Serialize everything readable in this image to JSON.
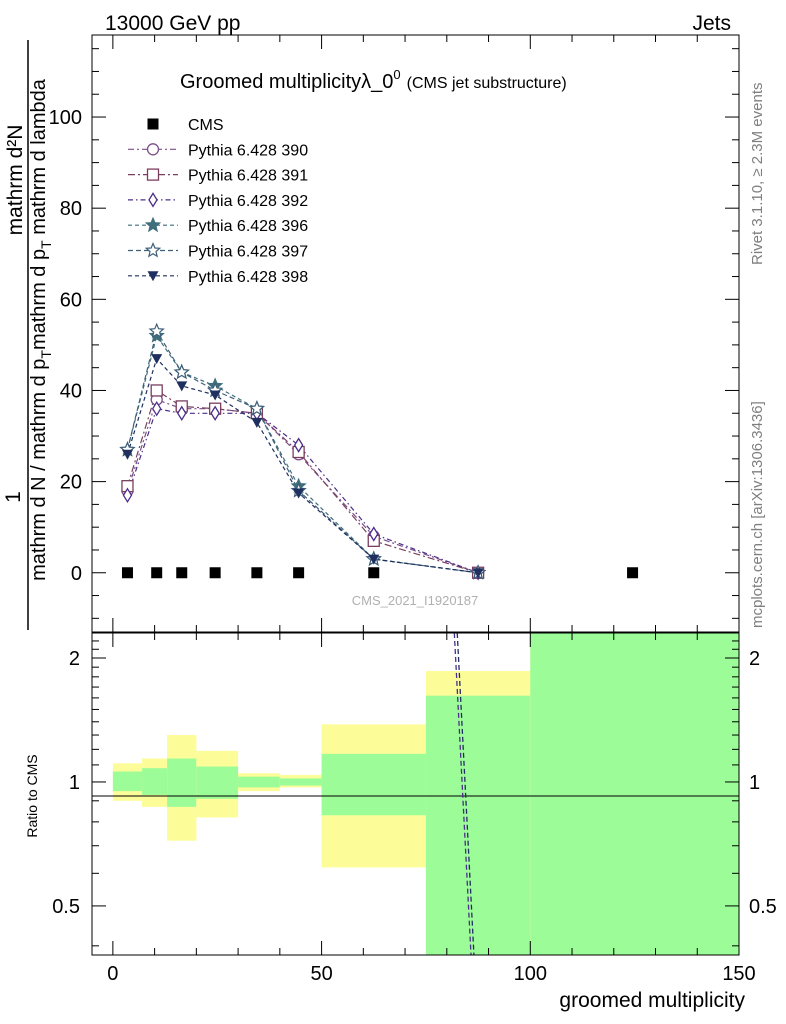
{
  "header": {
    "left": "13000 GeV pp",
    "right": "Jets"
  },
  "side_labels": {
    "rivet": "Rivet 3.1.10, ≥ 2.3M events",
    "mcplots": "mcplots.cern.ch [arXiv:1306.3436]"
  },
  "colors": {
    "cms": "#000000",
    "p390": "#7a4f8a",
    "p391": "#7a3f5f",
    "p392": "#4b2f8a",
    "p396": "#3f6f7a",
    "p397": "#3f5f7a",
    "p398": "#1f2f5f",
    "band_inner": "#9cfc98",
    "band_outer": "#fcfc98"
  },
  "chart_data": [
    {
      "type": "line",
      "title": "Groomed multiplicityλ_0",
      "title_sup": "0",
      "title_suffix": "(CMS jet substructure)",
      "watermark": "CMS_2021_I1920187",
      "ylabel_num": "1",
      "ylabel_den_num": "mathrm d",
      "ylabel_den_num2": "N",
      "ylabel_numer2": "mathrm d N / mathrm d p",
      "ylabel_full_num": "mathrm d²N",
      "ylabel_frac_bottom": "mathrm d N / mathrm d p_T mathrm d p_T mathrm d lambda",
      "ylabel_text_top": "mathrm d²N",
      "ylabel_text_bottom": "mathrm d p_T mathrm d lambda",
      "ylabel_outer_num": "1",
      "ylabel_outer_den": "mathrm d N / mathrm d p_T",
      "xlim": [
        -5,
        150
      ],
      "ylim": [
        -13,
        118
      ],
      "yticks": [
        0,
        20,
        40,
        60,
        80,
        100
      ],
      "legend_position": "top-left",
      "series": [
        {
          "name": "CMS",
          "marker": "square",
          "x": [
            3.5,
            10.5,
            16.5,
            24.5,
            34.5,
            44.5,
            62.5,
            124.5
          ],
          "y": [
            0,
            0,
            0,
            0,
            0,
            0,
            0,
            0
          ]
        },
        {
          "name": "Pythia 6.428 390",
          "marker": "circle",
          "x": [
            3.5,
            10.5,
            16.5,
            24.5,
            34.5,
            44.5,
            62.5,
            87.5
          ],
          "y": [
            18,
            38,
            36,
            36,
            35,
            26,
            8,
            0
          ]
        },
        {
          "name": "Pythia 6.428 391",
          "marker": "square-open",
          "x": [
            3.5,
            10.5,
            16.5,
            24.5,
            34.5,
            44.5,
            62.5,
            87.5
          ],
          "y": [
            19,
            40,
            36.5,
            36,
            35,
            26.5,
            7,
            0
          ]
        },
        {
          "name": "Pythia 6.428 392",
          "marker": "diamond",
          "x": [
            3.5,
            10.5,
            16.5,
            24.5,
            34.5,
            44.5,
            62.5,
            87.5
          ],
          "y": [
            17,
            36,
            35,
            35,
            35,
            28,
            8.5,
            0
          ]
        },
        {
          "name": "Pythia 6.428 396",
          "marker": "star",
          "x": [
            3.5,
            10.5,
            16.5,
            24.5,
            34.5,
            44.5,
            62.5,
            87.5
          ],
          "y": [
            27,
            52,
            44,
            41,
            36,
            19,
            3,
            0
          ]
        },
        {
          "name": "Pythia 6.428 397",
          "marker": "star-open",
          "x": [
            3.5,
            10.5,
            16.5,
            24.5,
            34.5,
            44.5,
            62.5,
            87.5
          ],
          "y": [
            27,
            53,
            44,
            40,
            36,
            18,
            3,
            0
          ]
        },
        {
          "name": "Pythia 6.428 398",
          "marker": "triangle-down",
          "x": [
            3.5,
            10.5,
            16.5,
            24.5,
            34.5,
            44.5,
            62.5,
            87.5
          ],
          "y": [
            26,
            47,
            41,
            39,
            33,
            17.5,
            3,
            0
          ]
        }
      ]
    },
    {
      "type": "area",
      "ylabel": "Ratio to CMS",
      "xlabel": "groomed multiplicity",
      "xlim": [
        -5,
        150
      ],
      "ylim": [
        0.38,
        2.3
      ],
      "y_scale": "log",
      "xticks": [
        0,
        50,
        100,
        150
      ],
      "yticks": [
        0.5,
        1,
        2
      ],
      "bins": [
        {
          "x0": 0,
          "x1": 7,
          "inner": [
            0.95,
            1.06
          ],
          "outer": [
            0.9,
            1.11
          ]
        },
        {
          "x0": 7,
          "x1": 13,
          "inner": [
            0.93,
            1.08
          ],
          "outer": [
            0.87,
            1.14
          ]
        },
        {
          "x0": 13,
          "x1": 20,
          "inner": [
            0.87,
            1.14
          ],
          "outer": [
            0.72,
            1.3
          ]
        },
        {
          "x0": 20,
          "x1": 30,
          "inner": [
            0.91,
            1.09
          ],
          "outer": [
            0.82,
            1.19
          ]
        },
        {
          "x0": 30,
          "x1": 40,
          "inner": [
            0.97,
            1.03
          ],
          "outer": [
            0.95,
            1.05
          ]
        },
        {
          "x0": 40,
          "x1": 50,
          "inner": [
            0.98,
            1.02
          ],
          "outer": [
            0.97,
            1.04
          ]
        },
        {
          "x0": 50,
          "x1": 75,
          "inner": [
            0.83,
            1.17
          ],
          "outer": [
            0.62,
            1.38
          ]
        },
        {
          "x0": 75,
          "x1": 100,
          "inner": [
            0.38,
            1.62
          ],
          "outer": [
            0.38,
            1.86
          ],
          "outer_gap": [
            0.58,
            1.34
          ]
        },
        {
          "x0": 100,
          "x1": 150,
          "inner": [
            0.38,
            2.3
          ],
          "outer": [
            0.38,
            2.3
          ]
        }
      ],
      "ratio_lines": [
        {
          "x": [
            82.5,
            86.5
          ],
          "y": [
            2.3,
            0.38
          ]
        },
        {
          "x": [
            81.8,
            85.8
          ],
          "y": [
            2.3,
            0.38
          ]
        }
      ]
    }
  ]
}
